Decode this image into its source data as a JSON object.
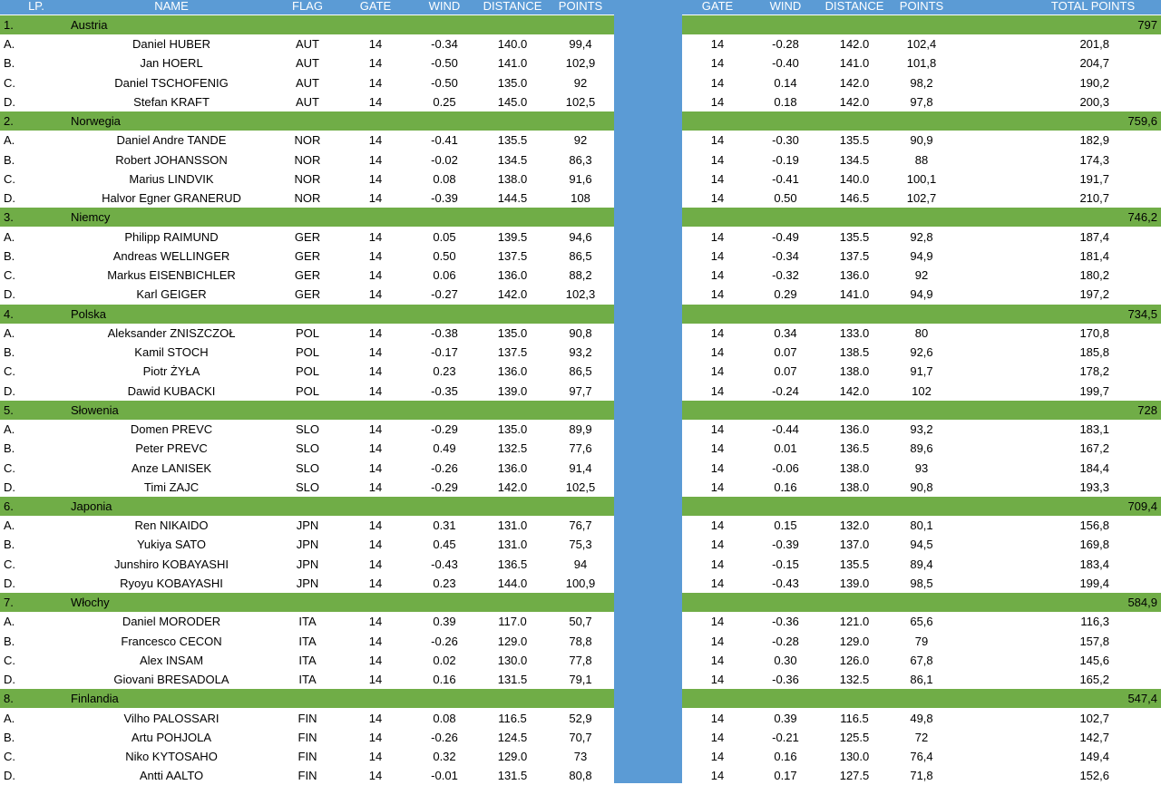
{
  "header": {
    "lp": "LP.",
    "name": "NAME",
    "flag": "FLAG",
    "gate": "GATE",
    "wind": "WIND",
    "distance": "DISTANCE",
    "points": "POINTS",
    "gate2": "GATE",
    "wind2": "WIND",
    "distance2": "DISTANCE",
    "points2": "POINTS",
    "total": "TOTAL POINTS"
  },
  "colors": {
    "header_bg": "#5b9bd5",
    "team_bg": "#70ad47",
    "divider": "#5b9bd5"
  },
  "teams": [
    {
      "rank": "1.",
      "name": "Austria",
      "total": "797",
      "jumpers": [
        {
          "lp": "A.",
          "name": "Daniel HUBER",
          "flag": "AUT",
          "gate": "14",
          "wind": "-0.34",
          "distance": "140.0",
          "points": "99,4",
          "gate2": "14",
          "wind2": "-0.28",
          "distance2": "142.0",
          "points2": "102,4",
          "total": "201,8"
        },
        {
          "lp": "B.",
          "name": "Jan HOERL",
          "flag": "AUT",
          "gate": "14",
          "wind": "-0.50",
          "distance": "141.0",
          "points": "102,9",
          "gate2": "14",
          "wind2": "-0.40",
          "distance2": "141.0",
          "points2": "101,8",
          "total": "204,7"
        },
        {
          "lp": "C.",
          "name": "Daniel TSCHOFENIG",
          "flag": "AUT",
          "gate": "14",
          "wind": "-0.50",
          "distance": "135.0",
          "points": "92",
          "gate2": "14",
          "wind2": "0.14",
          "distance2": "142.0",
          "points2": "98,2",
          "total": "190,2"
        },
        {
          "lp": "D.",
          "name": "Stefan KRAFT",
          "flag": "AUT",
          "gate": "14",
          "wind": "0.25",
          "distance": "145.0",
          "points": "102,5",
          "gate2": "14",
          "wind2": "0.18",
          "distance2": "142.0",
          "points2": "97,8",
          "total": "200,3"
        }
      ]
    },
    {
      "rank": "2.",
      "name": "Norwegia",
      "total": "759,6",
      "jumpers": [
        {
          "lp": "A.",
          "name": "Daniel Andre TANDE",
          "flag": "NOR",
          "gate": "14",
          "wind": "-0.41",
          "distance": "135.5",
          "points": "92",
          "gate2": "14",
          "wind2": "-0.30",
          "distance2": "135.5",
          "points2": "90,9",
          "total": "182,9"
        },
        {
          "lp": "B.",
          "name": "Robert JOHANSSON",
          "flag": "NOR",
          "gate": "14",
          "wind": "-0.02",
          "distance": "134.5",
          "points": "86,3",
          "gate2": "14",
          "wind2": "-0.19",
          "distance2": "134.5",
          "points2": "88",
          "total": "174,3"
        },
        {
          "lp": "C.",
          "name": "Marius LINDVIK",
          "flag": "NOR",
          "gate": "14",
          "wind": "0.08",
          "distance": "138.0",
          "points": "91,6",
          "gate2": "14",
          "wind2": "-0.41",
          "distance2": "140.0",
          "points2": "100,1",
          "total": "191,7"
        },
        {
          "lp": "D.",
          "name": "Halvor Egner GRANERUD",
          "flag": "NOR",
          "gate": "14",
          "wind": "-0.39",
          "distance": "144.5",
          "points": "108",
          "gate2": "14",
          "wind2": "0.50",
          "distance2": "146.5",
          "points2": "102,7",
          "total": "210,7"
        }
      ]
    },
    {
      "rank": "3.",
      "name": "Niemcy",
      "total": "746,2",
      "jumpers": [
        {
          "lp": "A.",
          "name": "Philipp RAIMUND",
          "flag": "GER",
          "gate": "14",
          "wind": "0.05",
          "distance": "139.5",
          "points": "94,6",
          "gate2": "14",
          "wind2": "-0.49",
          "distance2": "135.5",
          "points2": "92,8",
          "total": "187,4"
        },
        {
          "lp": "B.",
          "name": "Andreas WELLINGER",
          "flag": "GER",
          "gate": "14",
          "wind": "0.50",
          "distance": "137.5",
          "points": "86,5",
          "gate2": "14",
          "wind2": "-0.34",
          "distance2": "137.5",
          "points2": "94,9",
          "total": "181,4"
        },
        {
          "lp": "C.",
          "name": "Markus EISENBICHLER",
          "flag": "GER",
          "gate": "14",
          "wind": "0.06",
          "distance": "136.0",
          "points": "88,2",
          "gate2": "14",
          "wind2": "-0.32",
          "distance2": "136.0",
          "points2": "92",
          "total": "180,2"
        },
        {
          "lp": "D.",
          "name": "Karl GEIGER",
          "flag": "GER",
          "gate": "14",
          "wind": "-0.27",
          "distance": "142.0",
          "points": "102,3",
          "gate2": "14",
          "wind2": "0.29",
          "distance2": "141.0",
          "points2": "94,9",
          "total": "197,2"
        }
      ]
    },
    {
      "rank": "4.",
      "name": "Polska",
      "total": "734,5",
      "jumpers": [
        {
          "lp": "A.",
          "name": "Aleksander ZNISZCZOŁ",
          "flag": "POL",
          "gate": "14",
          "wind": "-0.38",
          "distance": "135.0",
          "points": "90,8",
          "gate2": "14",
          "wind2": "0.34",
          "distance2": "133.0",
          "points2": "80",
          "total": "170,8"
        },
        {
          "lp": "B.",
          "name": "Kamil STOCH",
          "flag": "POL",
          "gate": "14",
          "wind": "-0.17",
          "distance": "137.5",
          "points": "93,2",
          "gate2": "14",
          "wind2": "0.07",
          "distance2": "138.5",
          "points2": "92,6",
          "total": "185,8"
        },
        {
          "lp": "C.",
          "name": "Piotr ŻYŁA",
          "flag": "POL",
          "gate": "14",
          "wind": "0.23",
          "distance": "136.0",
          "points": "86,5",
          "gate2": "14",
          "wind2": "0.07",
          "distance2": "138.0",
          "points2": "91,7",
          "total": "178,2"
        },
        {
          "lp": "D.",
          "name": "Dawid KUBACKI",
          "flag": "POL",
          "gate": "14",
          "wind": "-0.35",
          "distance": "139.0",
          "points": "97,7",
          "gate2": "14",
          "wind2": "-0.24",
          "distance2": "142.0",
          "points2": "102",
          "total": "199,7"
        }
      ]
    },
    {
      "rank": "5.",
      "name": "Słowenia",
      "total": "728",
      "jumpers": [
        {
          "lp": "A.",
          "name": "Domen PREVC",
          "flag": "SLO",
          "gate": "14",
          "wind": "-0.29",
          "distance": "135.0",
          "points": "89,9",
          "gate2": "14",
          "wind2": "-0.44",
          "distance2": "136.0",
          "points2": "93,2",
          "total": "183,1"
        },
        {
          "lp": "B.",
          "name": "Peter PREVC",
          "flag": "SLO",
          "gate": "14",
          "wind": "0.49",
          "distance": "132.5",
          "points": "77,6",
          "gate2": "14",
          "wind2": "0.01",
          "distance2": "136.5",
          "points2": "89,6",
          "total": "167,2"
        },
        {
          "lp": "C.",
          "name": "Anze LANISEK",
          "flag": "SLO",
          "gate": "14",
          "wind": "-0.26",
          "distance": "136.0",
          "points": "91,4",
          "gate2": "14",
          "wind2": "-0.06",
          "distance2": "138.0",
          "points2": "93",
          "total": "184,4"
        },
        {
          "lp": "D.",
          "name": "Timi ZAJC",
          "flag": "SLO",
          "gate": "14",
          "wind": "-0.29",
          "distance": "142.0",
          "points": "102,5",
          "gate2": "14",
          "wind2": "0.16",
          "distance2": "138.0",
          "points2": "90,8",
          "total": "193,3"
        }
      ]
    },
    {
      "rank": "6.",
      "name": "Japonia",
      "total": "709,4",
      "jumpers": [
        {
          "lp": "A.",
          "name": "Ren NIKAIDO",
          "flag": "JPN",
          "gate": "14",
          "wind": "0.31",
          "distance": "131.0",
          "points": "76,7",
          "gate2": "14",
          "wind2": "0.15",
          "distance2": "132.0",
          "points2": "80,1",
          "total": "156,8"
        },
        {
          "lp": "B.",
          "name": "Yukiya SATO",
          "flag": "JPN",
          "gate": "14",
          "wind": "0.45",
          "distance": "131.0",
          "points": "75,3",
          "gate2": "14",
          "wind2": "-0.39",
          "distance2": "137.0",
          "points2": "94,5",
          "total": "169,8"
        },
        {
          "lp": "C.",
          "name": "Junshiro KOBAYASHI",
          "flag": "JPN",
          "gate": "14",
          "wind": "-0.43",
          "distance": "136.5",
          "points": "94",
          "gate2": "14",
          "wind2": "-0.15",
          "distance2": "135.5",
          "points2": "89,4",
          "total": "183,4"
        },
        {
          "lp": "D.",
          "name": "Ryoyu KOBAYASHI",
          "flag": "JPN",
          "gate": "14",
          "wind": "0.23",
          "distance": "144.0",
          "points": "100,9",
          "gate2": "14",
          "wind2": "-0.43",
          "distance2": "139.0",
          "points2": "98,5",
          "total": "199,4"
        }
      ]
    },
    {
      "rank": "7.",
      "name": "Włochy",
      "total": "584,9",
      "jumpers": [
        {
          "lp": "A.",
          "name": "Daniel MORODER",
          "flag": "ITA",
          "gate": "14",
          "wind": "0.39",
          "distance": "117.0",
          "points": "50,7",
          "gate2": "14",
          "wind2": "-0.36",
          "distance2": "121.0",
          "points2": "65,6",
          "total": "116,3"
        },
        {
          "lp": "B.",
          "name": "Francesco CECON",
          "flag": "ITA",
          "gate": "14",
          "wind": "-0.26",
          "distance": "129.0",
          "points": "78,8",
          "gate2": "14",
          "wind2": "-0.28",
          "distance2": "129.0",
          "points2": "79",
          "total": "157,8"
        },
        {
          "lp": "C.",
          "name": "Alex INSAM",
          "flag": "ITA",
          "gate": "14",
          "wind": "0.02",
          "distance": "130.0",
          "points": "77,8",
          "gate2": "14",
          "wind2": "0.30",
          "distance2": "126.0",
          "points2": "67,8",
          "total": "145,6"
        },
        {
          "lp": "D.",
          "name": "Giovani BRESADOLA",
          "flag": "ITA",
          "gate": "14",
          "wind": "0.16",
          "distance": "131.5",
          "points": "79,1",
          "gate2": "14",
          "wind2": "-0.36",
          "distance2": "132.5",
          "points2": "86,1",
          "total": "165,2"
        }
      ]
    },
    {
      "rank": "8.",
      "name": "Finlandia",
      "total": "547,4",
      "jumpers": [
        {
          "lp": "A.",
          "name": "Vilho PALOSSARI",
          "flag": "FIN",
          "gate": "14",
          "wind": "0.08",
          "distance": "116.5",
          "points": "52,9",
          "gate2": "14",
          "wind2": "0.39",
          "distance2": "116.5",
          "points2": "49,8",
          "total": "102,7"
        },
        {
          "lp": "B.",
          "name": "Artu POHJOLA",
          "flag": "FIN",
          "gate": "14",
          "wind": "-0.26",
          "distance": "124.5",
          "points": "70,7",
          "gate2": "14",
          "wind2": "-0.21",
          "distance2": "125.5",
          "points2": "72",
          "total": "142,7"
        },
        {
          "lp": "C.",
          "name": "Niko KYTOSAHO",
          "flag": "FIN",
          "gate": "14",
          "wind": "0.32",
          "distance": "129.0",
          "points": "73",
          "gate2": "14",
          "wind2": "0.16",
          "distance2": "130.0",
          "points2": "76,4",
          "total": "149,4"
        },
        {
          "lp": "D.",
          "name": "Antti AALTO",
          "flag": "FIN",
          "gate": "14",
          "wind": "-0.01",
          "distance": "131.5",
          "points": "80,8",
          "gate2": "14",
          "wind2": "0.17",
          "distance2": "127.5",
          "points2": "71,8",
          "total": "152,6"
        }
      ]
    }
  ]
}
